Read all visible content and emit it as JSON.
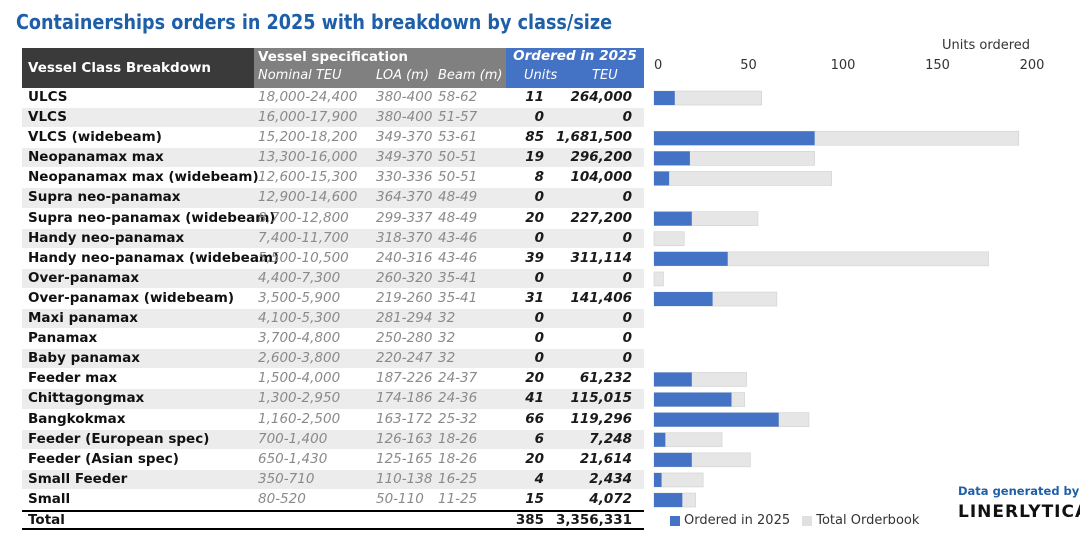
{
  "title": "Containerships orders in 2025 with breakdown by class/size",
  "table": {
    "header_class": "Vessel Class Breakdown",
    "header_spec": "Vessel specification",
    "header_teu": "Nominal TEU",
    "header_loa": "LOA (m)",
    "header_beam": "Beam (m)",
    "header_ordered": "Ordered in 2025",
    "header_units": "Units",
    "header_ord_teu": "TEU",
    "rows": [
      {
        "name": "ULCS",
        "teu": "18,000-24,400",
        "loa": "380-400",
        "beam": "58-62",
        "units": "11",
        "ord_teu": "264,000"
      },
      {
        "name": "VLCS",
        "teu": "16,000-17,900",
        "loa": "380-400",
        "beam": "51-57",
        "units": "0",
        "ord_teu": "0"
      },
      {
        "name": "VLCS (widebeam)",
        "teu": "15,200-18,200",
        "loa": "349-370",
        "beam": "53-61",
        "units": "85",
        "ord_teu": "1,681,500"
      },
      {
        "name": "Neopanamax max",
        "teu": "13,300-16,000",
        "loa": "349-370",
        "beam": "50-51",
        "units": "19",
        "ord_teu": "296,200"
      },
      {
        "name": "Neopanamax max (widebeam)",
        "teu": "12,600-15,300",
        "loa": "330-336",
        "beam": "50-51",
        "units": "8",
        "ord_teu": "104,000"
      },
      {
        "name": "Supra neo-panamax",
        "teu": "12,900-14,600",
        "loa": "364-370",
        "beam": "48-49",
        "units": "0",
        "ord_teu": "0"
      },
      {
        "name": "Supra neo-panamax (widebeam)",
        "teu": "8,700-12,800",
        "loa": "299-337",
        "beam": "48-49",
        "units": "20",
        "ord_teu": "227,200"
      },
      {
        "name": "Handy neo-panamax",
        "teu": "7,400-11,700",
        "loa": "318-370",
        "beam": "43-46",
        "units": "0",
        "ord_teu": "0"
      },
      {
        "name": "Handy neo-panamax (widebeam)",
        "teu": "5,500-10,500",
        "loa": "240-316",
        "beam": "43-46",
        "units": "39",
        "ord_teu": "311,114"
      },
      {
        "name": "Over-panamax",
        "teu": "4,400-7,300",
        "loa": "260-320",
        "beam": "35-41",
        "units": "0",
        "ord_teu": "0"
      },
      {
        "name": "Over-panamax (widebeam)",
        "teu": "3,500-5,900",
        "loa": "219-260",
        "beam": "35-41",
        "units": "31",
        "ord_teu": "141,406"
      },
      {
        "name": "Maxi panamax",
        "teu": "4,100-5,300",
        "loa": "281-294",
        "beam": "32",
        "units": "0",
        "ord_teu": "0"
      },
      {
        "name": "Panamax",
        "teu": "3,700-4,800",
        "loa": "250-280",
        "beam": "32",
        "units": "0",
        "ord_teu": "0"
      },
      {
        "name": "Baby panamax",
        "teu": "2,600-3,800",
        "loa": "220-247",
        "beam": "32",
        "units": "0",
        "ord_teu": "0"
      },
      {
        "name": "Feeder max",
        "teu": "1,500-4,000",
        "loa": "187-226",
        "beam": "24-37",
        "units": "20",
        "ord_teu": "61,232"
      },
      {
        "name": "Chittagongmax",
        "teu": "1,300-2,950",
        "loa": "174-186",
        "beam": "24-36",
        "units": "41",
        "ord_teu": "115,015"
      },
      {
        "name": "Bangkokmax",
        "teu": "1,160-2,500",
        "loa": "163-172",
        "beam": "25-32",
        "units": "66",
        "ord_teu": "119,296"
      },
      {
        "name": "Feeder (European spec)",
        "teu": "700-1,400",
        "loa": "126-163",
        "beam": "18-26",
        "units": "6",
        "ord_teu": "7,248"
      },
      {
        "name": "Feeder (Asian spec)",
        "teu": "650-1,430",
        "teu2": "",
        "loa": "125-165",
        "beam": "18-26",
        "units": "20",
        "ord_teu": "21,614"
      },
      {
        "name": "Small Feeder",
        "teu": "350-710",
        "loa": "110-138",
        "beam": "16-25",
        "units": "4",
        "ord_teu": "2,434"
      },
      {
        "name": "Small",
        "teu": "80-520",
        "loa": "50-110",
        "beam": "11-25",
        "units": "15",
        "ord_teu": "4,072"
      }
    ],
    "total": {
      "name": "Total",
      "units": "385",
      "ord_teu": "3,356,331"
    }
  },
  "chart_data": {
    "type": "bar",
    "orientation": "horizontal",
    "xlabel": "Units ordered",
    "xlim": [
      0,
      200
    ],
    "xticks": [
      0,
      50,
      100,
      150,
      200
    ],
    "categories": [
      "ULCS",
      "VLCS",
      "VLCS (widebeam)",
      "Neopanamax max",
      "Neopanamax max (widebeam)",
      "Supra neo-panamax",
      "Supra neo-panamax (widebeam)",
      "Handy neo-panamax",
      "Handy neo-panamax (widebeam)",
      "Over-panamax",
      "Over-panamax (widebeam)",
      "Maxi panamax",
      "Panamax",
      "Baby panamax",
      "Feeder max",
      "Chittagongmax",
      "Bangkokmax",
      "Feeder (European spec)",
      "Feeder (Asian spec)",
      "Small Feeder",
      "Small"
    ],
    "series": [
      {
        "name": "Ordered in 2025",
        "color": "#4472c4",
        "values": [
          11,
          0,
          85,
          19,
          8,
          0,
          20,
          0,
          39,
          0,
          31,
          0,
          0,
          0,
          20,
          41,
          66,
          6,
          20,
          4,
          15
        ]
      },
      {
        "name": "Total Orderbook",
        "color": "#e6e6e6",
        "values": [
          57,
          0,
          193,
          85,
          94,
          0,
          55,
          16,
          177,
          5,
          65,
          0,
          0,
          0,
          49,
          48,
          82,
          36,
          51,
          26,
          22
        ]
      }
    ],
    "legend_position": "bottom"
  },
  "credit": "Data generated by",
  "brand": "LINERLYTICA"
}
